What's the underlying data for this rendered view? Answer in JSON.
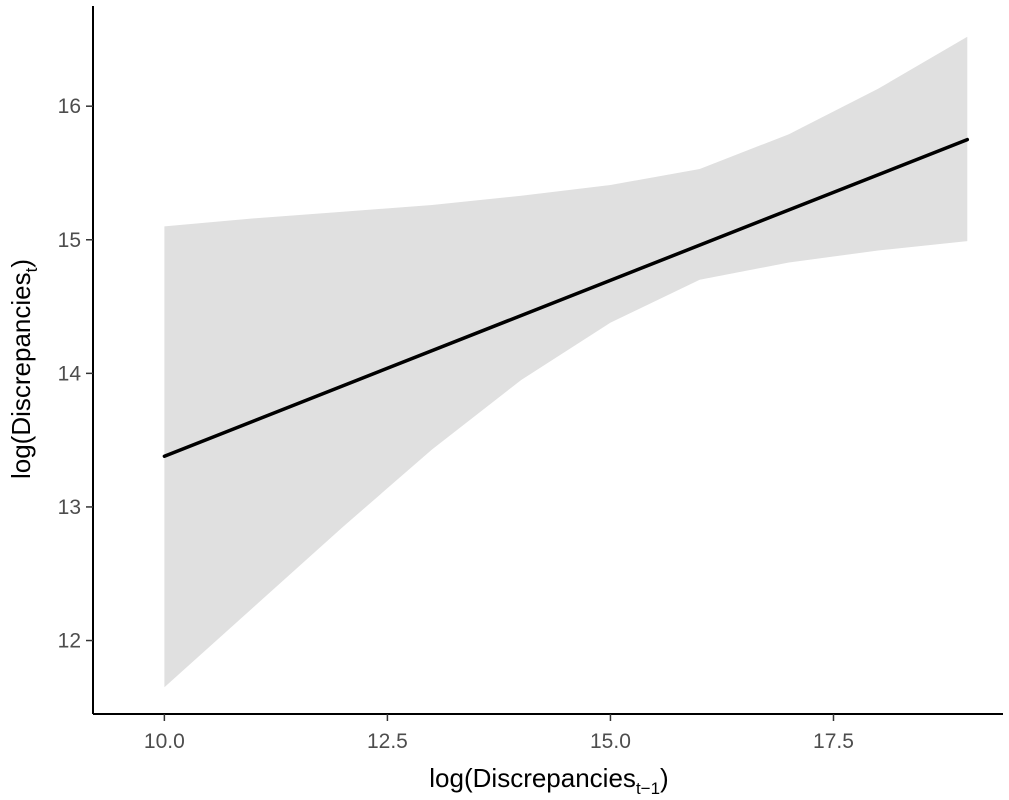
{
  "chart_data": {
    "type": "line",
    "title": "",
    "xlabel": {
      "base": "log(Discrepancies",
      "sub": "t−1",
      "close": ")"
    },
    "ylabel": {
      "base": "log(Discrepancies",
      "sub": "t",
      "close": ")"
    },
    "xlim": [
      9.2,
      19.4
    ],
    "ylim": [
      11.45,
      16.75
    ],
    "grid": false,
    "legend": "none",
    "x_ticks": [
      10.0,
      12.5,
      15.0,
      17.5
    ],
    "x_tick_labels": [
      "10.0",
      "12.5",
      "15.0",
      "17.5"
    ],
    "y_ticks": [
      12,
      13,
      14,
      15,
      16
    ],
    "y_tick_labels": [
      "12",
      "13",
      "14",
      "15",
      "16"
    ],
    "series": [
      {
        "x": [
          10.0,
          19.0
        ],
        "y": [
          13.38,
          15.75
        ],
        "color": "#000000"
      }
    ],
    "confidence_band": {
      "color": "#e0e0e0",
      "x": [
        10.0,
        11.0,
        12.0,
        13.0,
        14.0,
        15.0,
        16.0,
        17.0,
        18.0,
        19.0
      ],
      "lower": [
        11.65,
        12.25,
        12.85,
        13.43,
        13.95,
        14.38,
        14.7,
        14.83,
        14.92,
        14.99
      ],
      "upper": [
        15.1,
        15.16,
        15.21,
        15.26,
        15.33,
        15.41,
        15.53,
        15.79,
        16.13,
        16.52
      ]
    }
  }
}
